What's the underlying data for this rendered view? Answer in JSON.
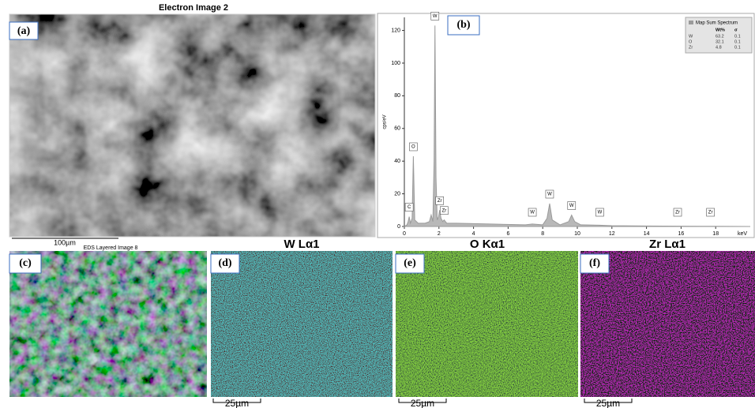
{
  "panels": {
    "a": {
      "label": "(a)",
      "title": "Electron Image 2",
      "scale_bar": "100µm",
      "caption": "EDS Layered Image 8"
    },
    "b": {
      "label": "(b)"
    },
    "c": {
      "label": "(c)"
    },
    "d": {
      "label": "(d)",
      "title": "W Lα1",
      "scale_bar": "25µm"
    },
    "e": {
      "label": "(e)",
      "title": "O Kα1",
      "scale_bar": "25µm"
    },
    "f": {
      "label": "(f)",
      "title": "Zr Lα1",
      "scale_bar": "25µm"
    }
  },
  "chart_data": {
    "type": "line",
    "xlabel": "keV",
    "ylabel": "cps/eV",
    "x": [
      0,
      0.15,
      0.22,
      0.28,
      0.35,
      0.45,
      0.52,
      0.6,
      0.8,
      1.2,
      1.45,
      1.55,
      1.65,
      1.72,
      1.77,
      1.83,
      1.9,
      1.98,
      2.04,
      2.12,
      2.22,
      2.3,
      2.45,
      3,
      5,
      7,
      7.4,
      8,
      8.25,
      8.4,
      8.55,
      9,
      9.5,
      9.67,
      9.85,
      10.2,
      11.3,
      12,
      14,
      16,
      18,
      20
    ],
    "series": [
      {
        "name": "Map Sum Spectrum",
        "color": "#9a9a9a",
        "values": [
          0,
          1,
          3,
          6,
          2,
          5,
          43,
          4,
          2,
          2,
          3,
          7,
          3,
          40,
          123,
          30,
          4,
          6,
          10,
          5,
          3,
          4,
          2,
          2,
          1.5,
          1,
          1.5,
          1,
          5,
          14,
          4,
          1,
          3,
          7,
          3,
          1,
          0.8,
          0.5,
          0.3,
          0.2,
          0.1,
          0
        ]
      }
    ],
    "xlim": [
      0,
      20
    ],
    "xticks": [
      0,
      2,
      4,
      6,
      8,
      10,
      12,
      14,
      16,
      18
    ],
    "ylim": [
      0,
      128
    ],
    "yticks": [
      0,
      20,
      40,
      60,
      80,
      100,
      120
    ],
    "annotations": [
      {
        "text": "C",
        "x": 0.28
      },
      {
        "text": "O",
        "x": 0.52
      },
      {
        "text": "W",
        "x": 1.77
      },
      {
        "text": "Zr",
        "x": 2.04
      },
      {
        "text": "Zr",
        "x": 2.3
      },
      {
        "text": "W",
        "x": 7.4
      },
      {
        "text": "W",
        "x": 8.4
      },
      {
        "text": "W",
        "x": 9.67
      },
      {
        "text": "W",
        "x": 11.3
      },
      {
        "text": "Zr",
        "x": 15.8
      },
      {
        "text": "Zr",
        "x": 17.7
      }
    ],
    "legend_columns": [
      "Wt%",
      "σ"
    ],
    "legend_rows": [
      [
        "W",
        63.2,
        0.1
      ],
      [
        "O",
        32.1,
        0.1
      ],
      [
        "Zr",
        4.8,
        0.1
      ]
    ]
  }
}
